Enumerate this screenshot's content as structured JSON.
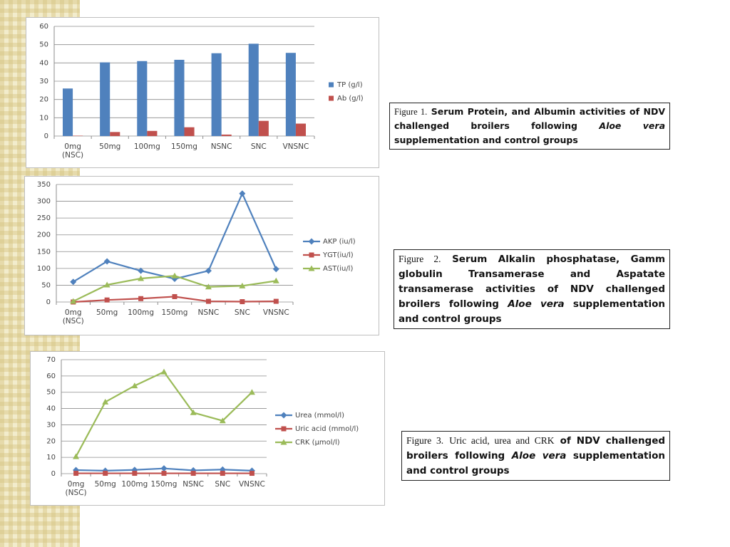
{
  "chart_data": [
    {
      "type": "bar",
      "categories": [
        "0mg (NSC)",
        "50mg",
        "100mg",
        "150mg",
        "NSNC",
        "SNC",
        "VNSNC"
      ],
      "series": [
        {
          "name": "TP  (g/l)",
          "color": "#4f81bd",
          "values": [
            26,
            40.3,
            41,
            41.7,
            45.3,
            50.5,
            45.5
          ]
        },
        {
          "name": "Ab (g/l)",
          "color": "#c0504d",
          "values": [
            0.2,
            2.2,
            2.8,
            4.8,
            0.8,
            8.3,
            6.8
          ]
        }
      ],
      "ylim": [
        0,
        60
      ],
      "yticks": [
        0,
        10,
        20,
        30,
        40,
        50,
        60
      ],
      "grid": true,
      "legend": "right",
      "caption": [
        "Figure 1.",
        "Serum Protein, and Albumin activities of NDV challenged broilers following",
        "Aloe vera",
        "supplementation and control groups"
      ]
    },
    {
      "type": "line",
      "categories": [
        "0mg (NSC)",
        "50mg",
        "100mg",
        "150mg",
        "NSNC",
        "SNC",
        "VNSNC"
      ],
      "series": [
        {
          "name": "AKP (iu/l)",
          "color": "#4f81bd",
          "marker": "diamond",
          "values": [
            60,
            121,
            93,
            69,
            93,
            323,
            98
          ]
        },
        {
          "name": "YGT(iu/l)",
          "color": "#c0504d",
          "marker": "square",
          "values": [
            0,
            6,
            10,
            16,
            2,
            1,
            2
          ]
        },
        {
          "name": "AST(iu/l)",
          "color": "#9bbb59",
          "marker": "triangle",
          "values": [
            2,
            51,
            70,
            78,
            45,
            48,
            63
          ]
        }
      ],
      "ylim": [
        0,
        350
      ],
      "yticks": [
        0,
        50,
        100,
        150,
        200,
        250,
        300,
        350
      ],
      "grid": true,
      "legend": "right",
      "caption": [
        "Figure 2.",
        "Serum Alkalin phosphatase, Gamm globulin Transamerase and Aspatate transamerase activities of NDV challenged broilers following",
        "Aloe vera",
        "supplementation and control groups"
      ]
    },
    {
      "type": "line",
      "categories": [
        "0mg (NSC)",
        "50mg",
        "100mg",
        "150mg",
        "NSNC",
        "SNC",
        "VNSNC"
      ],
      "series": [
        {
          "name": "Urea (mmol/l)",
          "color": "#4f81bd",
          "marker": "diamond",
          "values": [
            2.2,
            1.8,
            2.3,
            3.2,
            2,
            2.5,
            1.8
          ]
        },
        {
          "name": "Uric acid (mmol/l)",
          "color": "#c0504d",
          "marker": "square",
          "values": [
            0.2,
            0.2,
            0.2,
            0.2,
            0.2,
            0.2,
            0.2
          ]
        },
        {
          "name": "CRK (µmol/l)",
          "color": "#9bbb59",
          "marker": "triangle",
          "values": [
            10.5,
            44,
            54,
            62.5,
            37.5,
            32.5,
            50
          ]
        }
      ],
      "ylim": [
        0,
        70
      ],
      "yticks": [
        0,
        10,
        20,
        30,
        40,
        50,
        60,
        70
      ],
      "grid": true,
      "legend": "right",
      "caption": [
        "Figure 3.",
        "Uric acid, urea and CRK",
        "of NDV challenged broilers following",
        "Aloe vera",
        "supplementation and control groups"
      ]
    }
  ]
}
